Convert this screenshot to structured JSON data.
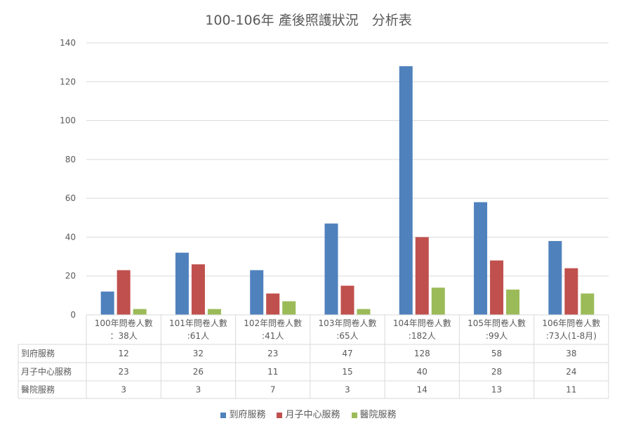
{
  "chart_data": {
    "type": "bar",
    "title": "100-106年 產後照護狀況　分析表",
    "categories_line1": [
      "100年問卷人數",
      "101年問卷人數",
      "102年問卷人數",
      "103年問卷人數",
      "104年問卷人數",
      "105年問卷人數",
      "106年問卷人數"
    ],
    "categories_line2": [
      "：38人",
      ":61人",
      ":41人",
      ":65人",
      ":182人",
      ":99人",
      ":73人(1-8月)"
    ],
    "series": [
      {
        "name": "到府服務",
        "color": "#4f81bd",
        "values": [
          12,
          32,
          23,
          47,
          128,
          58,
          38
        ]
      },
      {
        "name": "月子中心服務",
        "color": "#c0504d",
        "values": [
          23,
          26,
          11,
          15,
          40,
          28,
          24
        ]
      },
      {
        "name": "醫院服務",
        "color": "#9bbb59",
        "values": [
          3,
          3,
          7,
          3,
          14,
          13,
          11
        ]
      }
    ],
    "ylim": [
      0,
      140
    ],
    "yticks": [
      0,
      20,
      40,
      60,
      80,
      100,
      120,
      140
    ],
    "grid": true,
    "legend_position": "bottom",
    "data_table": true
  }
}
